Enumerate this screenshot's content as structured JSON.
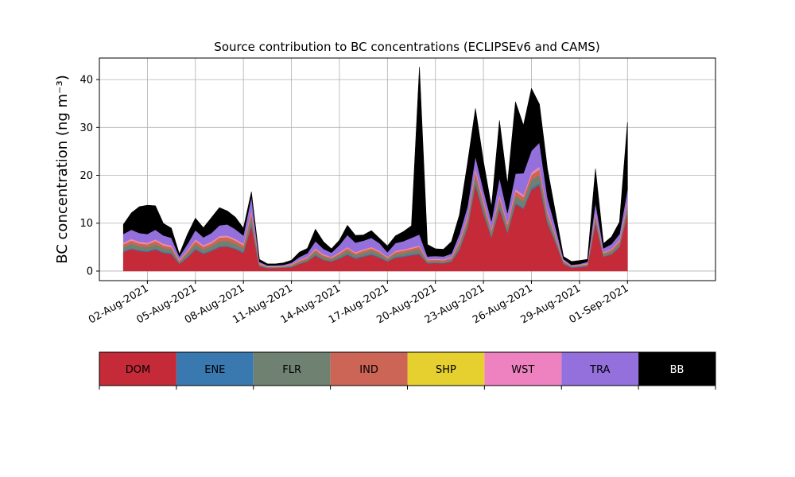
{
  "chart_data": {
    "type": "area",
    "stacked": true,
    "title": "Source contribution to BC concentrations (ECLIPSEv6 and CAMS)",
    "xlabel": "",
    "ylabel": "BC concentration (ng m⁻³)",
    "ylim": [
      -2,
      44.5
    ],
    "xlim": [
      0.0,
      38.5
    ],
    "grid": true,
    "x_unit": "days from 30-Jul-2021",
    "xticks": [
      3,
      6,
      9,
      12,
      15,
      18,
      21,
      24,
      27,
      30,
      33
    ],
    "xtick_labels": [
      "02-Aug-2021",
      "05-Aug-2021",
      "08-Aug-2021",
      "11-Aug-2021",
      "14-Aug-2021",
      "17-Aug-2021",
      "20-Aug-2021",
      "23-Aug-2021",
      "26-Aug-2021",
      "29-Aug-2021",
      "01-Sep-2021"
    ],
    "yticks": [
      0,
      10,
      20,
      30,
      40
    ],
    "ytick_labels": [
      "0",
      "10",
      "20",
      "30",
      "40"
    ],
    "x": [
      1.5,
      2.0,
      2.5,
      3.0,
      3.5,
      4.0,
      4.5,
      5.0,
      5.5,
      6.0,
      6.5,
      7.0,
      7.5,
      8.0,
      8.5,
      9.0,
      9.5,
      10.0,
      10.5,
      11.0,
      11.5,
      12.0,
      12.5,
      13.0,
      13.5,
      14.0,
      14.5,
      15.0,
      15.5,
      16.0,
      16.5,
      17.0,
      17.5,
      18.0,
      18.5,
      19.0,
      19.5,
      20.0,
      20.5,
      21.0,
      21.5,
      22.0,
      22.5,
      23.0,
      23.5,
      24.0,
      24.5,
      25.0,
      25.5,
      26.0,
      26.5,
      27.0,
      27.5,
      28.0,
      28.5,
      29.0,
      29.5,
      30.0,
      30.5,
      31.0,
      31.5,
      32.0,
      32.5,
      33.0
    ],
    "series": [
      {
        "name": "DOM",
        "color": "#c52a38",
        "values": [
          4.0,
          4.6,
          4.2,
          4.0,
          4.5,
          3.8,
          3.6,
          1.5,
          2.8,
          4.5,
          3.6,
          4.2,
          5.0,
          5.1,
          4.6,
          3.8,
          9.5,
          1.0,
          0.6,
          0.6,
          0.7,
          0.8,
          1.5,
          2.0,
          3.2,
          2.3,
          2.0,
          2.6,
          3.4,
          2.6,
          3.0,
          3.4,
          2.8,
          2.0,
          2.8,
          3.0,
          3.3,
          3.5,
          1.6,
          1.7,
          1.6,
          2.0,
          4.5,
          9.0,
          18.0,
          12.0,
          7.0,
          13.0,
          8.0,
          14.0,
          13.0,
          17.0,
          18.0,
          10.0,
          6.0,
          1.5,
          0.7,
          0.8,
          1.0,
          10.0,
          3.0,
          3.5,
          5.0,
          12.0
        ]
      },
      {
        "name": "ENE",
        "color": "#3a78b0",
        "values": [
          0.2,
          0.2,
          0.2,
          0.2,
          0.2,
          0.2,
          0.2,
          0.1,
          0.2,
          0.2,
          0.2,
          0.2,
          0.2,
          0.2,
          0.2,
          0.2,
          0.3,
          0.1,
          0.1,
          0.1,
          0.1,
          0.1,
          0.1,
          0.1,
          0.2,
          0.1,
          0.1,
          0.2,
          0.2,
          0.2,
          0.2,
          0.2,
          0.2,
          0.1,
          0.2,
          0.2,
          0.2,
          0.2,
          0.1,
          0.1,
          0.1,
          0.1,
          0.2,
          0.3,
          0.4,
          0.3,
          0.2,
          0.3,
          0.2,
          0.3,
          0.3,
          0.4,
          0.4,
          0.3,
          0.2,
          0.1,
          0.1,
          0.1,
          0.1,
          0.3,
          0.1,
          0.1,
          0.2,
          0.3
        ]
      },
      {
        "name": "FLR",
        "color": "#6f8170",
        "values": [
          0.8,
          0.9,
          0.8,
          0.8,
          0.9,
          0.8,
          0.7,
          0.3,
          0.6,
          0.9,
          0.7,
          0.8,
          1.0,
          1.0,
          0.9,
          0.8,
          1.5,
          0.2,
          0.1,
          0.1,
          0.1,
          0.2,
          0.3,
          0.4,
          0.6,
          0.5,
          0.4,
          0.5,
          0.7,
          0.5,
          0.6,
          0.7,
          0.6,
          0.4,
          0.6,
          0.6,
          0.7,
          0.8,
          0.3,
          0.3,
          0.3,
          0.4,
          0.8,
          1.0,
          1.5,
          1.2,
          0.8,
          1.3,
          0.9,
          1.4,
          1.3,
          1.6,
          1.7,
          1.1,
          0.7,
          0.3,
          0.1,
          0.2,
          0.2,
          1.0,
          0.4,
          0.5,
          0.6,
          1.1
        ]
      },
      {
        "name": "IND",
        "color": "#cc6555",
        "values": [
          0.6,
          0.7,
          0.6,
          0.6,
          0.7,
          0.6,
          0.5,
          0.3,
          0.5,
          0.7,
          0.6,
          0.6,
          0.8,
          0.8,
          0.7,
          0.6,
          1.0,
          0.2,
          0.1,
          0.1,
          0.1,
          0.2,
          0.3,
          0.3,
          0.5,
          0.4,
          0.3,
          0.4,
          0.5,
          0.4,
          0.5,
          0.5,
          0.4,
          0.3,
          0.4,
          0.5,
          0.5,
          0.6,
          0.3,
          0.3,
          0.3,
          0.3,
          0.6,
          0.8,
          1.0,
          0.9,
          0.6,
          0.9,
          0.7,
          1.0,
          0.9,
          1.1,
          1.2,
          0.8,
          0.5,
          0.2,
          0.1,
          0.1,
          0.2,
          0.7,
          0.3,
          0.4,
          0.5,
          0.8
        ]
      },
      {
        "name": "SHP",
        "color": "#e6d02f",
        "values": [
          0.05,
          0.05,
          0.05,
          0.05,
          0.05,
          0.05,
          0.05,
          0.05,
          0.05,
          0.05,
          0.05,
          0.05,
          0.05,
          0.05,
          0.05,
          0.05,
          0.05,
          0.05,
          0.05,
          0.05,
          0.05,
          0.05,
          0.05,
          0.05,
          0.05,
          0.05,
          0.05,
          0.05,
          0.05,
          0.05,
          0.05,
          0.05,
          0.05,
          0.05,
          0.05,
          0.05,
          0.05,
          0.05,
          0.05,
          0.05,
          0.05,
          0.05,
          0.05,
          0.05,
          0.05,
          0.05,
          0.05,
          0.05,
          0.05,
          0.05,
          0.05,
          0.05,
          0.05,
          0.05,
          0.05,
          0.05,
          0.05,
          0.05,
          0.05,
          0.05,
          0.05,
          0.05,
          0.05,
          0.05
        ]
      },
      {
        "name": "WST",
        "color": "#ee82c0",
        "values": [
          0.3,
          0.3,
          0.3,
          0.3,
          0.3,
          0.3,
          0.3,
          0.1,
          0.2,
          0.3,
          0.3,
          0.3,
          0.3,
          0.3,
          0.3,
          0.3,
          0.4,
          0.1,
          0.05,
          0.05,
          0.05,
          0.1,
          0.1,
          0.1,
          0.2,
          0.2,
          0.1,
          0.2,
          0.2,
          0.2,
          0.2,
          0.2,
          0.2,
          0.1,
          0.2,
          0.2,
          0.2,
          0.2,
          0.1,
          0.1,
          0.1,
          0.1,
          0.2,
          0.3,
          0.5,
          0.4,
          0.2,
          0.4,
          0.3,
          0.4,
          0.4,
          0.5,
          0.5,
          0.3,
          0.2,
          0.1,
          0.05,
          0.05,
          0.1,
          0.3,
          0.1,
          0.1,
          0.2,
          0.3
        ]
      },
      {
        "name": "TRA",
        "color": "#9370db",
        "values": [
          1.8,
          1.9,
          1.8,
          1.8,
          2.0,
          1.7,
          1.6,
          0.7,
          1.3,
          1.9,
          1.6,
          1.8,
          2.2,
          2.3,
          2.0,
          1.7,
          2.8,
          0.3,
          0.2,
          0.2,
          0.2,
          0.3,
          0.6,
          0.8,
          1.5,
          1.1,
          0.9,
          1.5,
          2.5,
          2.0,
          1.8,
          1.9,
          1.6,
          1.0,
          1.6,
          1.7,
          2.0,
          2.3,
          0.6,
          0.6,
          0.6,
          0.7,
          1.4,
          2.0,
          2.5,
          2.1,
          1.6,
          3.5,
          2.0,
          3.2,
          4.5,
          4.5,
          5.0,
          2.8,
          1.6,
          0.3,
          0.2,
          0.2,
          0.3,
          2.0,
          0.8,
          1.0,
          1.2,
          2.5
        ]
      },
      {
        "name": "BB",
        "color": "#000000",
        "values": [
          2.0,
          3.5,
          5.5,
          6.0,
          5.0,
          2.5,
          2.0,
          0.5,
          2.0,
          2.5,
          2.0,
          3.2,
          3.7,
          2.8,
          2.5,
          1.5,
          1.0,
          0.5,
          0.3,
          0.3,
          0.4,
          0.5,
          1.0,
          1.0,
          2.5,
          1.5,
          0.8,
          1.0,
          2.0,
          1.5,
          1.2,
          1.5,
          1.0,
          1.3,
          1.5,
          2.0,
          2.5,
          35.0,
          2.5,
          1.5,
          1.5,
          2.5,
          4.0,
          9.0,
          10.0,
          6.0,
          3.0,
          12.0,
          6.0,
          15.0,
          10.0,
          13.0,
          8.0,
          6.0,
          3.0,
          0.5,
          0.7,
          0.7,
          0.5,
          7.0,
          1.0,
          1.5,
          2.5,
          14.0
        ]
      }
    ]
  },
  "legend": {
    "placement": "bottom",
    "items": [
      {
        "label": "DOM",
        "color": "#c52a38",
        "text_color": "#000000"
      },
      {
        "label": "ENE",
        "color": "#3a78b0",
        "text_color": "#000000"
      },
      {
        "label": "FLR",
        "color": "#6f8170",
        "text_color": "#000000"
      },
      {
        "label": "IND",
        "color": "#cc6555",
        "text_color": "#000000"
      },
      {
        "label": "SHP",
        "color": "#e6d02f",
        "text_color": "#000000"
      },
      {
        "label": "WST",
        "color": "#ee82c0",
        "text_color": "#000000"
      },
      {
        "label": "TRA",
        "color": "#9370db",
        "text_color": "#000000"
      },
      {
        "label": "BB",
        "color": "#000000",
        "text_color": "#ffffff"
      }
    ]
  }
}
